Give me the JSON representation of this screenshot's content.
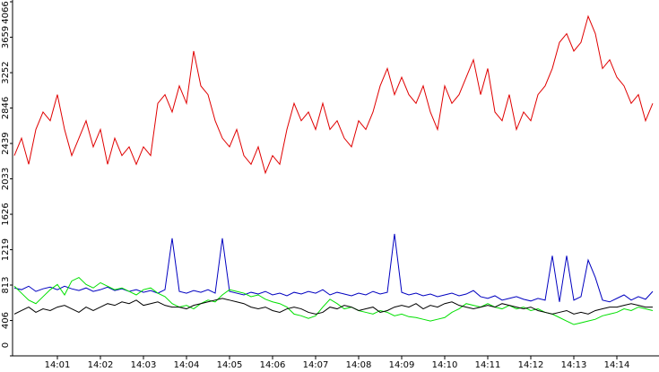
{
  "chart_data": {
    "type": "line",
    "categories": [
      null,
      null,
      null,
      null,
      null,
      null,
      "14:01",
      null,
      null,
      null,
      null,
      null,
      "14:02",
      null,
      null,
      null,
      null,
      null,
      "14:03",
      null,
      null,
      null,
      null,
      null,
      "14:04",
      null,
      null,
      null,
      null,
      null,
      "14:05",
      null,
      null,
      null,
      null,
      null,
      "14:06",
      null,
      null,
      null,
      null,
      null,
      "14:07",
      null,
      null,
      null,
      null,
      null,
      "14:08",
      null,
      null,
      null,
      null,
      null,
      "14:09",
      null,
      null,
      null,
      null,
      null,
      "14:10",
      null,
      null,
      null,
      null,
      null,
      "14:11",
      null,
      null,
      null,
      null,
      null,
      "14:12",
      null,
      null,
      null,
      null,
      null,
      "14:13",
      null,
      null,
      null,
      null,
      null,
      "14:14",
      null,
      null,
      null,
      null,
      null
    ],
    "ylim": [
      0,
      4066
    ],
    "yticks": [
      0,
      406,
      813,
      1219,
      1626,
      2033,
      2439,
      2846,
      3252,
      3659,
      4066
    ],
    "series": [
      {
        "color": "#e00000",
        "values": [
          2300,
          2500,
          2200,
          2600,
          2800,
          2700,
          3000,
          2600,
          2300,
          2500,
          2700,
          2400,
          2600,
          2200,
          2500,
          2300,
          2400,
          2200,
          2400,
          2300,
          2900,
          3000,
          2800,
          3100,
          2900,
          3500,
          3100,
          3000,
          2700,
          2500,
          2400,
          2600,
          2300,
          2200,
          2400,
          2100,
          2300,
          2200,
          2600,
          2900,
          2700,
          2800,
          2600,
          2900,
          2600,
          2700,
          2500,
          2400,
          2700,
          2600,
          2800,
          3100,
          3300,
          3000,
          3200,
          3000,
          2900,
          3100,
          2800,
          2600,
          3100,
          2900,
          3000,
          3200,
          3400,
          3000,
          3300,
          2800,
          2700,
          3000,
          2600,
          2800,
          2700,
          3000,
          3100,
          3300,
          3600,
          3700,
          3500,
          3600,
          3900,
          3700,
          3300,
          3400,
          3200,
          3100,
          2900,
          3000,
          2700,
          2900
        ]
      },
      {
        "color": "#0000c0",
        "values": [
          780,
          760,
          800,
          740,
          770,
          790,
          760,
          800,
          770,
          750,
          780,
          740,
          760,
          790,
          750,
          770,
          740,
          760,
          730,
          750,
          720,
          760,
          1350,
          740,
          720,
          750,
          730,
          760,
          720,
          1350,
          740,
          720,
          700,
          730,
          710,
          740,
          700,
          720,
          690,
          730,
          710,
          740,
          720,
          760,
          700,
          730,
          710,
          690,
          720,
          700,
          740,
          710,
          730,
          1400,
          730,
          700,
          720,
          690,
          710,
          680,
          700,
          720,
          690,
          710,
          750,
          680,
          660,
          690,
          640,
          660,
          680,
          650,
          630,
          660,
          640,
          1150,
          620,
          1150,
          640,
          680,
          1100,
          900,
          640,
          620,
          660,
          700,
          640,
          680,
          650,
          740
        ]
      },
      {
        "color": "#00e000",
        "values": [
          800,
          720,
          640,
          600,
          680,
          760,
          820,
          700,
          860,
          900,
          820,
          780,
          840,
          800,
          760,
          780,
          740,
          700,
          760,
          780,
          720,
          680,
          600,
          560,
          580,
          540,
          600,
          640,
          620,
          700,
          760,
          740,
          720,
          680,
          700,
          650,
          620,
          600,
          560,
          480,
          460,
          430,
          460,
          560,
          650,
          600,
          540,
          560,
          520,
          500,
          480,
          520,
          500,
          460,
          480,
          450,
          440,
          420,
          400,
          420,
          440,
          500,
          540,
          600,
          580,
          560,
          600,
          560,
          540,
          580,
          540,
          560,
          520,
          540,
          500,
          480,
          440,
          400,
          360,
          380,
          400,
          420,
          460,
          480,
          500,
          540,
          520,
          560,
          540,
          520
        ]
      },
      {
        "color": "#000000",
        "values": [
          480,
          520,
          560,
          500,
          540,
          520,
          560,
          580,
          540,
          500,
          560,
          520,
          560,
          600,
          580,
          620,
          600,
          640,
          580,
          600,
          620,
          580,
          560,
          560,
          540,
          580,
          600,
          620,
          640,
          660,
          640,
          620,
          600,
          560,
          540,
          560,
          520,
          500,
          540,
          560,
          540,
          500,
          480,
          500,
          560,
          540,
          580,
          560,
          520,
          540,
          560,
          500,
          520,
          560,
          580,
          560,
          600,
          540,
          580,
          560,
          600,
          620,
          580,
          560,
          540,
          560,
          580,
          560,
          600,
          580,
          560,
          540,
          560,
          520,
          500,
          480,
          500,
          520,
          480,
          500,
          480,
          520,
          540,
          560,
          560,
          580,
          600,
          580,
          560,
          560
        ]
      }
    ]
  }
}
